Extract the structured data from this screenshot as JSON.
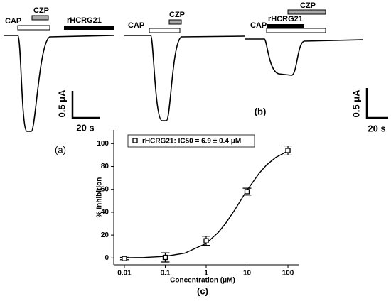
{
  "panel_a": {
    "cap": "CAP",
    "czp": "CZP",
    "toxin": "rHCRG21",
    "scale_y": "0.5 μA",
    "scale_x": "20 s",
    "caption": "(a)"
  },
  "panel_b": {
    "cap": "CAP",
    "czp": "CZP",
    "cap2": "CAP",
    "toxin": "rHCRG21",
    "czp2": "CZP",
    "scale_y": "0.5 μA",
    "scale_x": "20 s",
    "caption": "(b)"
  },
  "chart_data": {
    "type": "scatter",
    "caption": "(c)",
    "x_label": "Concentration (μM)",
    "y_label": "% Inhibition",
    "log_x": true,
    "xlim": [
      0.0055,
      182
    ],
    "xticks": [
      0.01,
      0.1,
      1,
      10,
      100
    ],
    "ylim": [
      -6,
      112
    ],
    "yticks": [
      0,
      20,
      40,
      60,
      80,
      100
    ],
    "x": [
      0.01,
      0.1,
      1,
      10,
      100
    ],
    "series": [
      {
        "name": "rHCRG21: IC50 = 6.9 ± 0.4 μM",
        "color": "#000000",
        "values": [
          -0.5,
          0.5,
          15,
          58,
          94
        ],
        "errors": [
          1,
          4,
          4,
          3,
          4
        ]
      }
    ],
    "fit": {
      "x": [
        0.01,
        0.03,
        0.1,
        0.3,
        1,
        2,
        3,
        5,
        7,
        10,
        20,
        30,
        50,
        100
      ],
      "values": [
        0.14,
        0.43,
        1.4,
        4.2,
        12.7,
        22.5,
        30.3,
        42,
        50.4,
        59.2,
        74.3,
        81.3,
        87.9,
        93.5
      ]
    },
    "legend": "top-left"
  }
}
